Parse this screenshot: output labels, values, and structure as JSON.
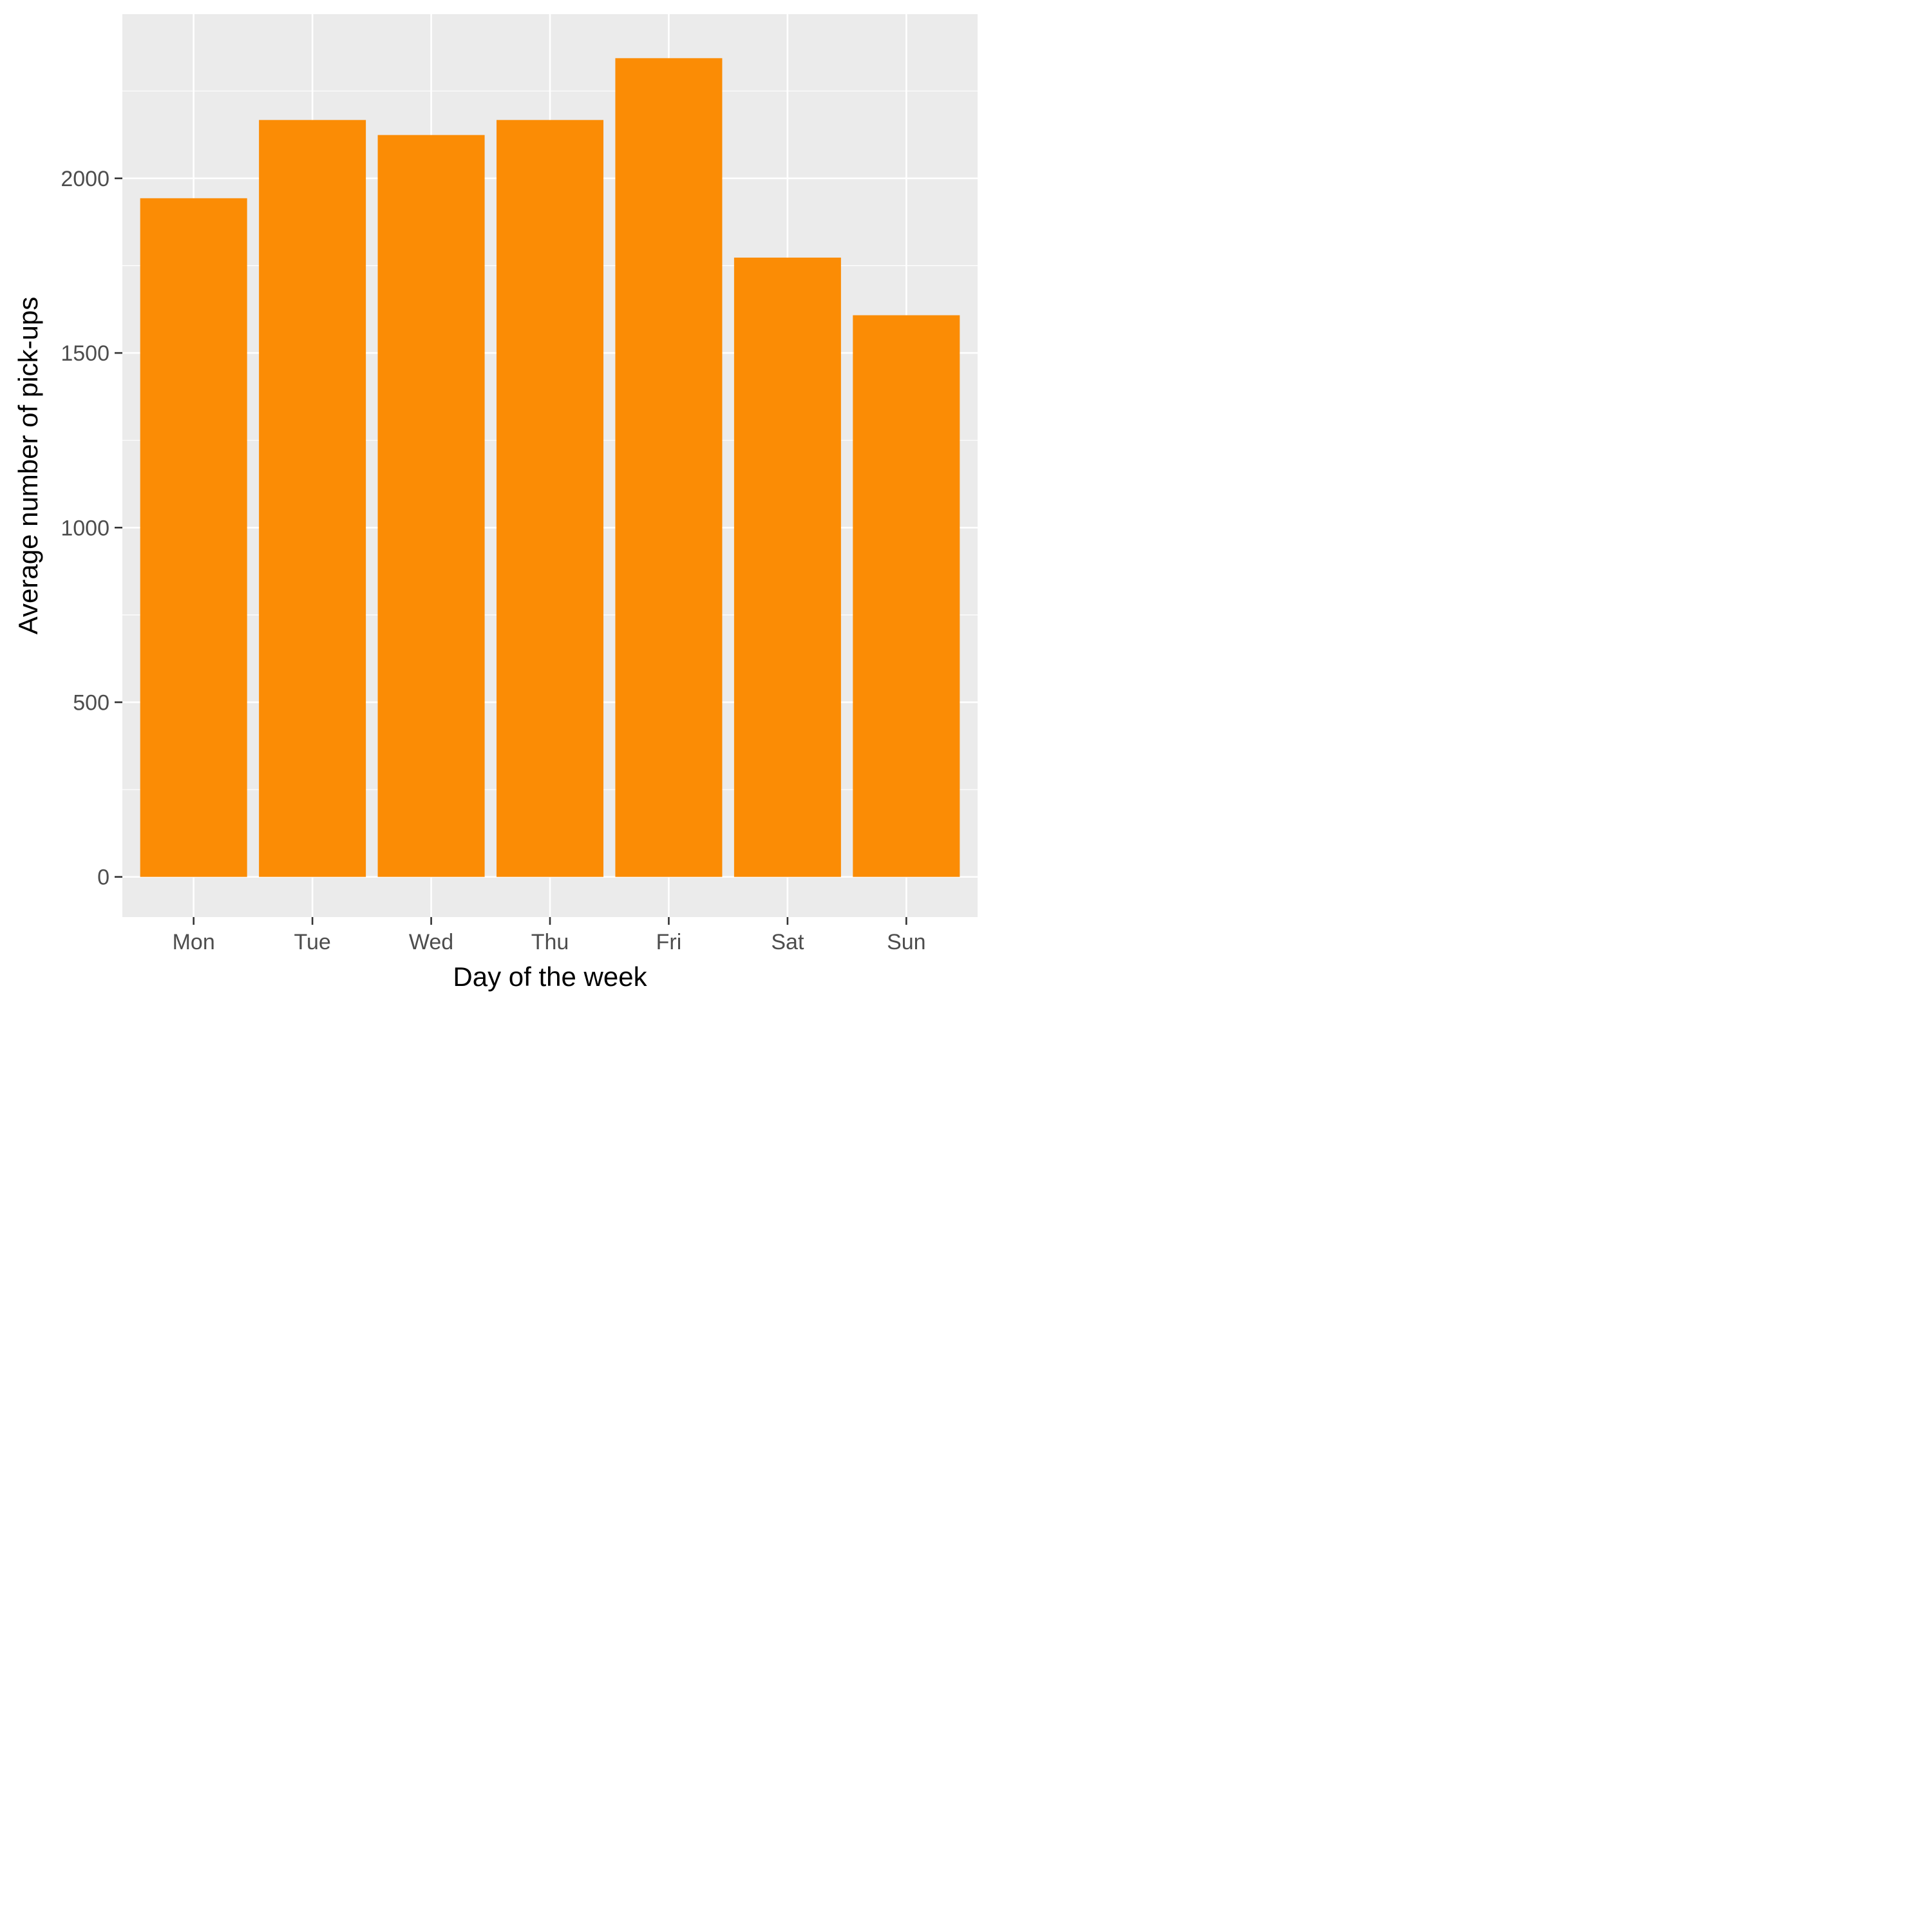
{
  "chart_data": {
    "type": "bar",
    "title": "",
    "xlabel": "Day of the week",
    "ylabel": "Average number of pick-ups",
    "categories": [
      "Mon",
      "Tue",
      "Wed",
      "Thu",
      "Fri",
      "Sat",
      "Sun"
    ],
    "values": [
      1943,
      2167,
      2124,
      2167,
      2344,
      1773,
      1608
    ],
    "ylim": [
      -115,
      2470
    ],
    "yticks": [
      0,
      500,
      1000,
      1500,
      2000
    ],
    "grid": true,
    "legend": "none",
    "colors": {
      "bar": "#FB8C05",
      "panel": "#EBEBEB",
      "grid": "#FFFFFF",
      "tick": "#333333",
      "tick_label": "#4D4D4D",
      "axis_title": "#000000"
    }
  }
}
